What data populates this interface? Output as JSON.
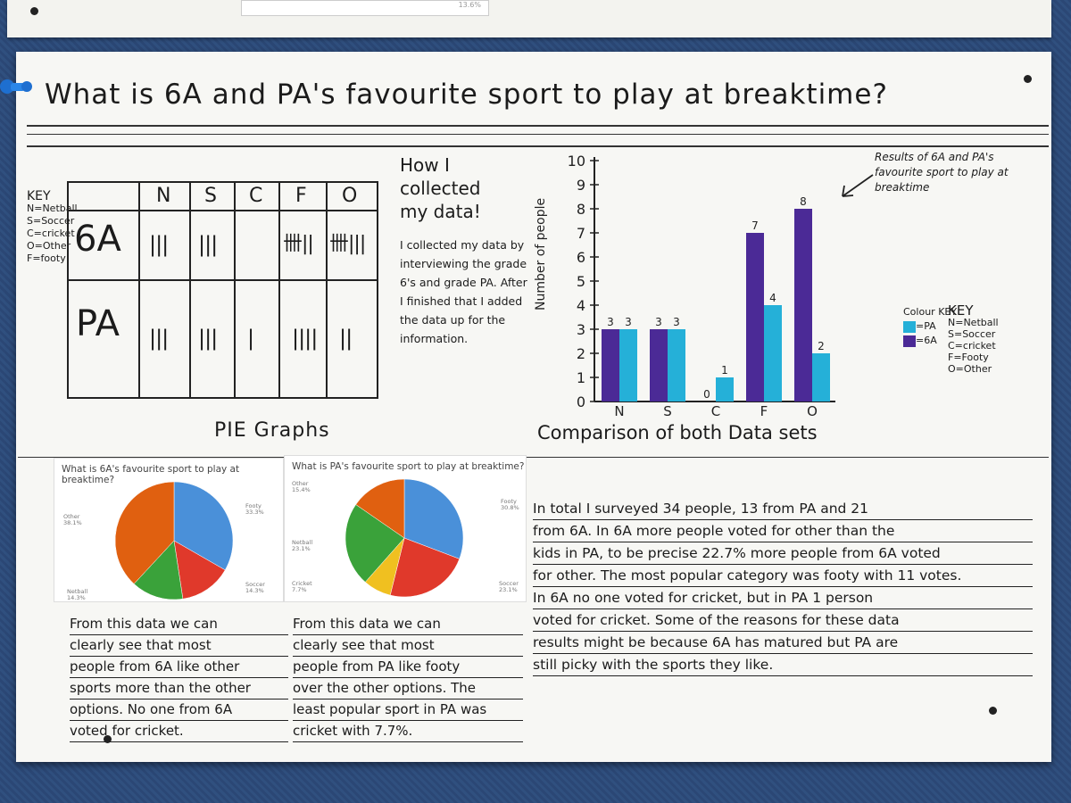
{
  "title": "What is 6A and PA's favourite sport to play at breaktime?",
  "top_scrap_label": "13.6%",
  "tally": {
    "columns": [
      "N",
      "S",
      "C",
      "F",
      "O"
    ],
    "rows": [
      {
        "label": "6A",
        "marks": [
          "|||",
          "|||",
          "",
          "卌||",
          "卌|||"
        ]
      },
      {
        "label": "PA",
        "marks": [
          "|||",
          "|||",
          "|",
          "||||",
          "||"
        ]
      }
    ],
    "key_lines": [
      "KEY",
      "N=Netball",
      "S=Soccer",
      "C=cricket",
      "O=Other",
      "F=footy"
    ]
  },
  "how": {
    "title_line1": "How I collected",
    "title_line2": "my data!",
    "body": "I collected my data by interviewing the grade 6's and grade PA. After I finished that I added the data up for the information."
  },
  "pie_heading": "PIE Graphs",
  "pie_6a": {
    "title": "What is 6A's favourite sport to play at breaktime?",
    "labels": [
      {
        "name": "Footy",
        "pct": "33.3%"
      },
      {
        "name": "Soccer",
        "pct": "14.3%"
      },
      {
        "name": "Netball",
        "pct": "14.3%"
      },
      {
        "name": "Other",
        "pct": "38.1%"
      }
    ]
  },
  "pie_pa": {
    "title": "What is PA's favourite sport to play at breaktime?",
    "labels": [
      {
        "name": "Footy",
        "pct": "30.8%"
      },
      {
        "name": "Soccer",
        "pct": "23.1%"
      },
      {
        "name": "Cricket",
        "pct": "7.7%"
      },
      {
        "name": "Netball",
        "pct": "23.1%"
      },
      {
        "name": "Other",
        "pct": "15.4%"
      }
    ]
  },
  "para_6a": [
    "From this data we can",
    "clearly see that most",
    "people from 6A like other",
    "sports more than the other",
    "options. No one from 6A",
    "voted for cricket."
  ],
  "para_pa": [
    "From this data we can",
    "clearly see that most",
    "people from PA like footy",
    "over the other options. The",
    "least popular sport in PA was",
    "cricket with 7.7%."
  ],
  "results_note": "Results of 6A and PA's favourite sport to play at breaktime",
  "colour_key": {
    "title": "Colour KEY",
    "pa": "=PA",
    "sixa": "=6A"
  },
  "key2": [
    "KEY",
    "N=Netball",
    "S=Soccer",
    "C=cricket",
    "F=Footy",
    "O=Other"
  ],
  "comparison_title": "Comparison of both Data sets",
  "total_para": [
    "In total I surveyed 34 people, 13 from PA and 21",
    "from 6A. In 6A more people voted for other than the",
    "kids in PA, to be precise 22.7% more people from 6A voted",
    "for other. The most popular category was footy with 11 votes.",
    "In 6A no one voted for cricket, but in PA 1 person",
    "voted for cricket. Some of the reasons for these data",
    "results might be because 6A has matured but PA are",
    "still picky with the sports they like."
  ],
  "colors": {
    "sixa": "#4b2a96",
    "pa": "#25b0d8",
    "footy": "#4a90d9",
    "soccer": "#e0392b",
    "netball": "#e06010",
    "other": "#e06010",
    "cricket": "#f0c020",
    "green": "#3aa23a"
  },
  "chart_data": [
    {
      "type": "bar",
      "title": "Comparison of both Data sets",
      "ylabel": "Number of people",
      "xlabel": "",
      "categories": [
        "N",
        "S",
        "C",
        "F",
        "O"
      ],
      "ylim": [
        0,
        10
      ],
      "yticks": [
        0,
        1,
        2,
        3,
        4,
        5,
        6,
        7,
        8,
        9,
        10
      ],
      "series": [
        {
          "name": "6A",
          "values": [
            3,
            3,
            0,
            7,
            8
          ]
        },
        {
          "name": "PA",
          "values": [
            3,
            3,
            1,
            4,
            2
          ]
        }
      ],
      "legend": "right"
    },
    {
      "type": "pie",
      "title": "What is 6A's favourite sport to play at breaktime?",
      "labels": [
        "Footy",
        "Soccer",
        "Netball",
        "Other"
      ],
      "values": [
        33.3,
        14.3,
        14.3,
        38.1
      ]
    },
    {
      "type": "pie",
      "title": "What is PA's favourite sport to play at breaktime?",
      "labels": [
        "Footy",
        "Soccer",
        "Cricket",
        "Netball",
        "Other"
      ],
      "values": [
        30.8,
        23.1,
        7.7,
        23.1,
        15.4
      ]
    }
  ]
}
